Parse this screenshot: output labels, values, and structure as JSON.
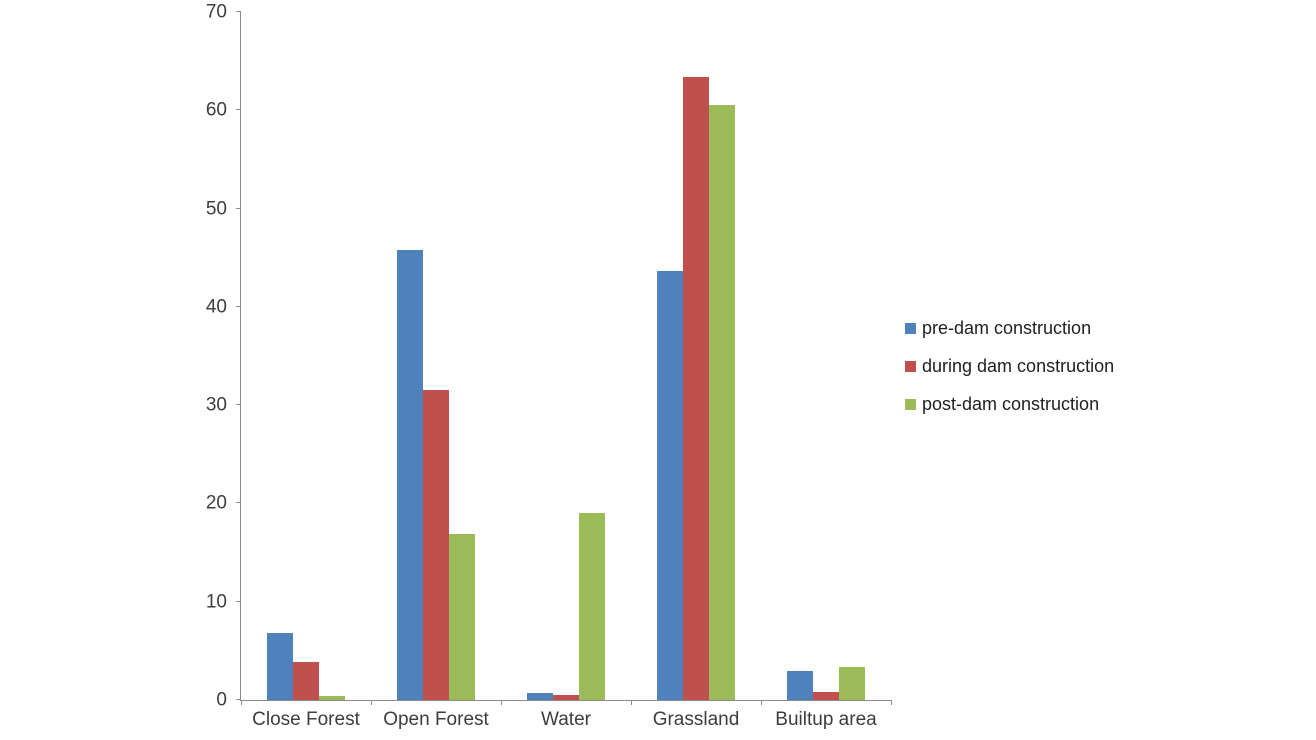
{
  "chart_data": {
    "type": "bar",
    "title": "",
    "xlabel": "",
    "ylabel": "",
    "categories": [
      "Close Forest",
      "Open Forest",
      "Water",
      "Grassland",
      "Builtup area"
    ],
    "series": [
      {
        "name": "pre-dam construction",
        "color": "#4F81BD",
        "values": [
          6.8,
          45.8,
          0.7,
          43.7,
          3.0
        ]
      },
      {
        "name": "during dam construction",
        "color": "#C0504D",
        "values": [
          3.9,
          31.5,
          0.5,
          63.4,
          0.8
        ]
      },
      {
        "name": "post-dam construction",
        "color": "#9BBB59",
        "values": [
          0.4,
          16.9,
          19.0,
          60.5,
          3.4
        ]
      }
    ],
    "ylim": [
      0,
      70
    ],
    "ytick_step": 10,
    "ytick_labels": [
      "0",
      "10",
      "20",
      "30",
      "40",
      "50",
      "60",
      "70"
    ],
    "grid": false,
    "legend_position": "right",
    "axis_color": "#8c8c8c"
  }
}
